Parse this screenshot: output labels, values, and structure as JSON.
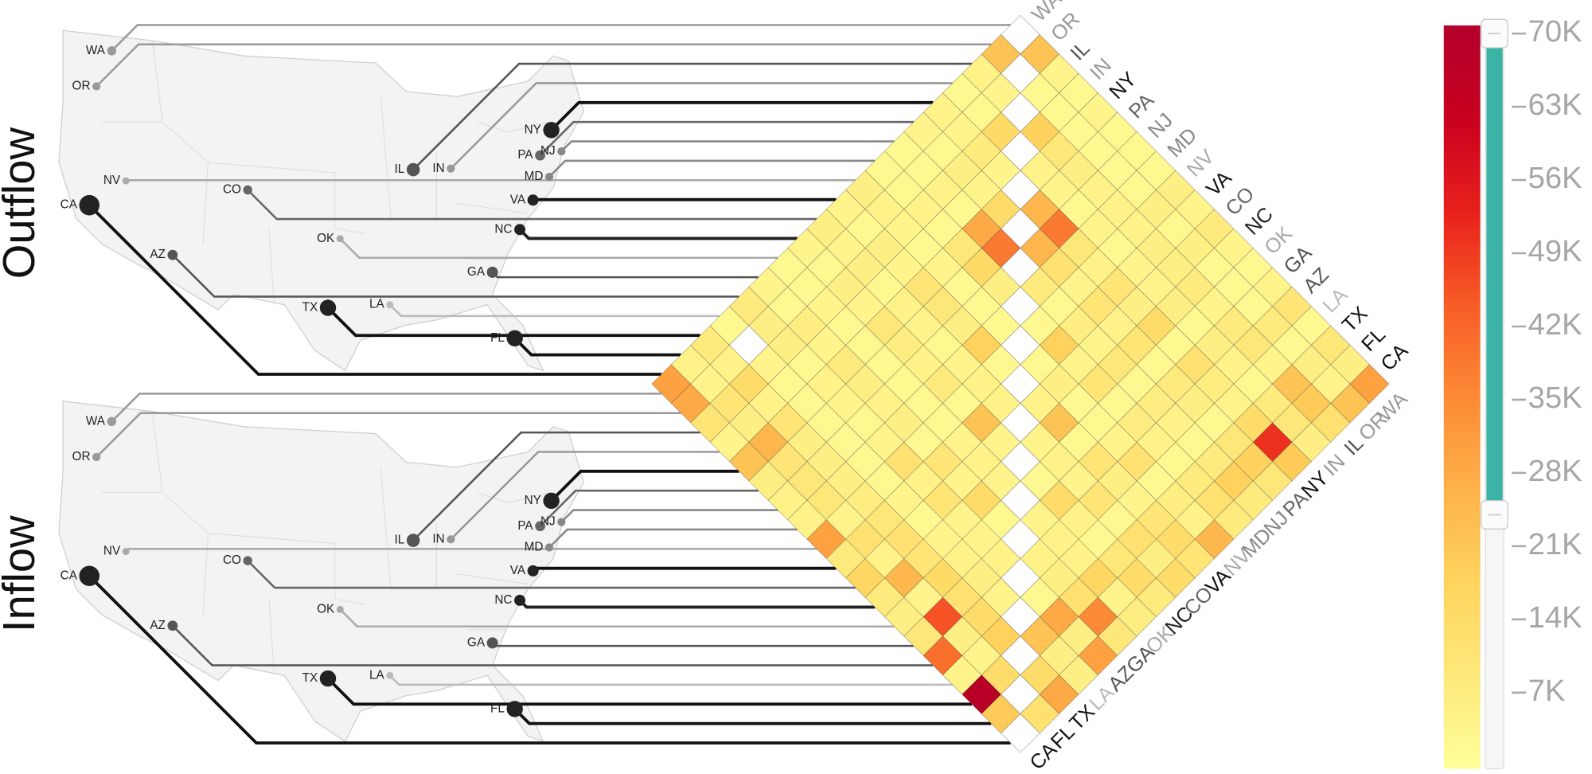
{
  "chart_data": {
    "type": "heatmap",
    "row_title": "Outflow",
    "column_title": "Inflow",
    "states": [
      "WA",
      "OR",
      "IL",
      "IN",
      "NY",
      "PA",
      "NJ",
      "MD",
      "NV",
      "VA",
      "CO",
      "NC",
      "OK",
      "GA",
      "AZ",
      "LA",
      "TX",
      "FL",
      "CA"
    ],
    "label_colors": [
      "#999999",
      "#999999",
      "#555555",
      "#999999",
      "#111111",
      "#666666",
      "#888888",
      "#888888",
      "#aaaaaa",
      "#111111",
      "#666666",
      "#222222",
      "#aaaaaa",
      "#555555",
      "#555555",
      "#bbbbbb",
      "#111111",
      "#111111",
      "#111111"
    ],
    "matrix": [
      [
        null,
        22000,
        4000,
        3000,
        4000,
        3000,
        3000,
        3000,
        6000,
        4000,
        8000,
        4000,
        3000,
        4000,
        10000,
        3000,
        9000,
        6000,
        30000
      ],
      [
        22000,
        null,
        3000,
        3000,
        3000,
        3000,
        3000,
        3000,
        6000,
        3000,
        6000,
        3000,
        3000,
        3000,
        8000,
        3000,
        6000,
        4000,
        22000
      ],
      [
        5000,
        4000,
        null,
        18000,
        9000,
        6000,
        5000,
        5000,
        5000,
        6000,
        6000,
        8000,
        4000,
        8000,
        9000,
        4000,
        22000,
        20000,
        12000
      ],
      [
        3000,
        3000,
        15000,
        null,
        5000,
        4000,
        3000,
        4000,
        3000,
        4000,
        4000,
        6000,
        3000,
        6000,
        5000,
        3000,
        8000,
        9000,
        6000
      ],
      [
        5000,
        4000,
        8000,
        4000,
        null,
        25000,
        38000,
        9000,
        5000,
        10000,
        6000,
        14000,
        3000,
        12000,
        7000,
        4000,
        14000,
        50000,
        20000
      ],
      [
        4000,
        3000,
        6000,
        4000,
        14000,
        null,
        25000,
        12000,
        4000,
        10000,
        5000,
        10000,
        3000,
        8000,
        6000,
        3000,
        9000,
        18000,
        9000
      ],
      [
        3000,
        3000,
        5000,
        3000,
        28000,
        38000,
        null,
        8000,
        3000,
        7000,
        4000,
        9000,
        3000,
        7000,
        5000,
        3000,
        8000,
        18000,
        8000
      ],
      [
        3000,
        3000,
        5000,
        3000,
        9000,
        15000,
        6000,
        null,
        3000,
        18000,
        4000,
        10000,
        3000,
        7000,
        5000,
        3000,
        8000,
        12000,
        8000
      ],
      [
        6000,
        5000,
        4000,
        3000,
        4000,
        3000,
        3000,
        3000,
        null,
        3000,
        6000,
        3000,
        3000,
        4000,
        12000,
        3000,
        7000,
        5000,
        25000
      ],
      [
        4000,
        3000,
        6000,
        4000,
        10000,
        9000,
        6000,
        18000,
        3000,
        null,
        5000,
        22000,
        3000,
        10000,
        6000,
        4000,
        10000,
        14000,
        10000
      ],
      [
        6000,
        4000,
        6000,
        3000,
        5000,
        4000,
        3000,
        4000,
        5000,
        5000,
        null,
        4000,
        5000,
        4000,
        10000,
        3000,
        12000,
        6000,
        14000
      ],
      [
        4000,
        3000,
        6000,
        4000,
        9000,
        7000,
        5000,
        8000,
        3000,
        22000,
        4000,
        null,
        3000,
        14000,
        5000,
        3000,
        9000,
        14000,
        8000
      ],
      [
        3000,
        3000,
        4000,
        3000,
        3000,
        3000,
        3000,
        3000,
        3000,
        4000,
        5000,
        4000,
        null,
        4000,
        5000,
        5000,
        16000,
        4000,
        7000
      ],
      [
        4000,
        3000,
        7000,
        4000,
        8000,
        6000,
        5000,
        6000,
        3000,
        10000,
        4000,
        14000,
        3000,
        null,
        5000,
        6000,
        12000,
        35000,
        9000
      ],
      [
        8000,
        6000,
        6000,
        3000,
        5000,
        4000,
        3000,
        4000,
        12000,
        5000,
        10000,
        4000,
        4000,
        5000,
        null,
        3000,
        28000,
        6000,
        30000
      ],
      [
        3000,
        null,
        4000,
        3000,
        3000,
        3000,
        3000,
        3000,
        3000,
        4000,
        3000,
        4000,
        5000,
        6000,
        4000,
        null,
        22000,
        6000,
        6000
      ],
      [
        8000,
        5000,
        14000,
        5000,
        10000,
        6000,
        6000,
        6000,
        7000,
        9000,
        12000,
        10000,
        15000,
        12000,
        14000,
        18000,
        null,
        14000,
        28000
      ],
      [
        5000,
        4000,
        10000,
        6000,
        25000,
        10000,
        9000,
        9000,
        4000,
        12000,
        5000,
        25000,
        4000,
        45000,
        6000,
        4000,
        14000,
        null,
        12000
      ],
      [
        30000,
        28000,
        10000,
        4000,
        22000,
        6000,
        5000,
        5000,
        30000,
        8000,
        16000,
        8000,
        6000,
        9000,
        40000,
        5000,
        68000,
        20000,
        null
      ]
    ],
    "colorbar": {
      "ylim": [
        0,
        70000
      ],
      "yticks": [
        {
          "value": 7000,
          "label": "7K"
        },
        {
          "value": 14000,
          "label": "14K"
        },
        {
          "value": 21000,
          "label": "21K"
        },
        {
          "value": 28000,
          "label": "28K"
        },
        {
          "value": 35000,
          "label": "35K"
        },
        {
          "value": 42000,
          "label": "42K"
        },
        {
          "value": 49000,
          "label": "49K"
        },
        {
          "value": 56000,
          "label": "56K"
        },
        {
          "value": 63000,
          "label": "63K"
        },
        {
          "value": 70000,
          "label": "70K"
        }
      ],
      "colors": [
        "#ffff9a",
        "#fee87a",
        "#fed45e",
        "#fdb24a",
        "#fc8a36",
        "#f75c26",
        "#e8201c",
        "#c9001f",
        "#b3002a"
      ],
      "filter": [
        24000,
        70000
      ]
    }
  }
}
